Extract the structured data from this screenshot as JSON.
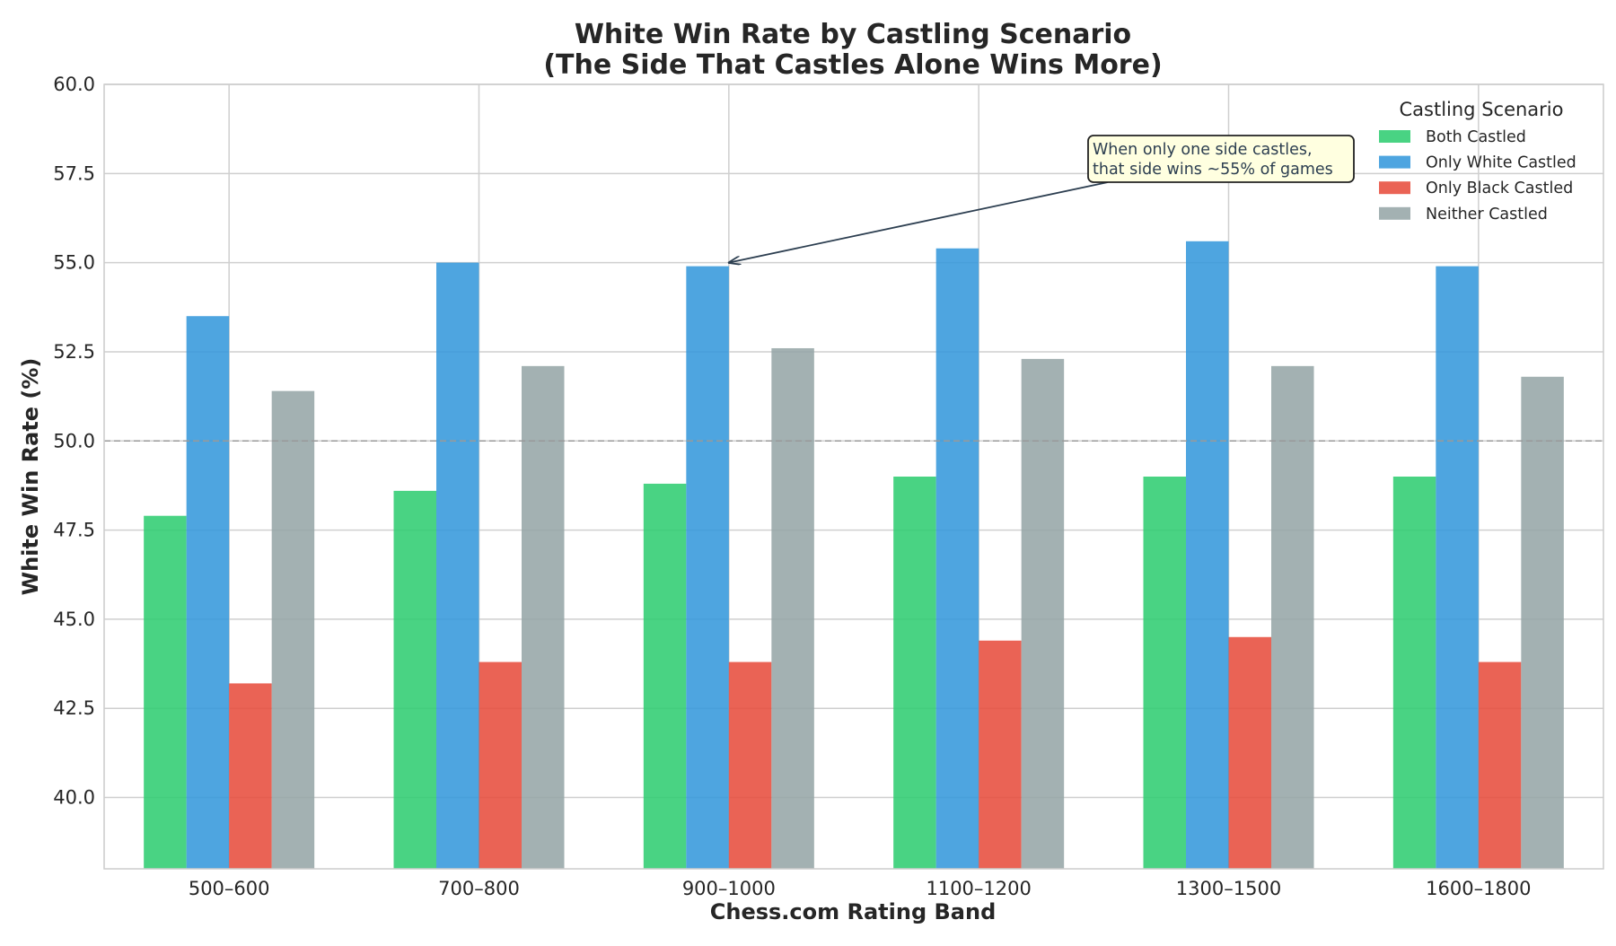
{
  "chart_data": {
    "type": "bar",
    "title": "White Win Rate by Castling Scenario",
    "subtitle": "(The Side That Castles Alone Wins More)",
    "xlabel": "Chess.com Rating Band",
    "ylabel": "White Win Rate (%)",
    "ylim": [
      38.0,
      60.0
    ],
    "yticks": [
      "40.0",
      "42.5",
      "45.0",
      "47.5",
      "50.0",
      "52.5",
      "55.0",
      "57.5",
      "60.0"
    ],
    "reference_line": 50.0,
    "grid": true,
    "legend_title": "Castling Scenario",
    "legend_position": "top-right",
    "categories": [
      "500–600",
      "700–800",
      "900–1000",
      "1100–1200",
      "1300–1500",
      "1600–1800"
    ],
    "series": [
      {
        "name": "Both Castled",
        "color": "#2ecc71",
        "values": [
          47.9,
          48.6,
          48.8,
          49.0,
          49.0,
          49.0
        ]
      },
      {
        "name": "Only White Castled",
        "color": "#3498db",
        "values": [
          53.5,
          55.0,
          54.9,
          55.4,
          55.6,
          54.9
        ]
      },
      {
        "name": "Only Black Castled",
        "color": "#e74c3c",
        "values": [
          43.2,
          43.8,
          43.8,
          44.4,
          44.5,
          43.8
        ]
      },
      {
        "name": "Neither Castled",
        "color": "#95a5a6",
        "values": [
          51.4,
          52.1,
          52.6,
          52.3,
          52.1,
          51.8
        ]
      }
    ],
    "annotation": {
      "lines": [
        "When only one side castles,",
        "that side wins ~55% of games"
      ],
      "target_category": "900–1000",
      "target_series": "Only White Castled",
      "target_value": 55.0
    }
  }
}
